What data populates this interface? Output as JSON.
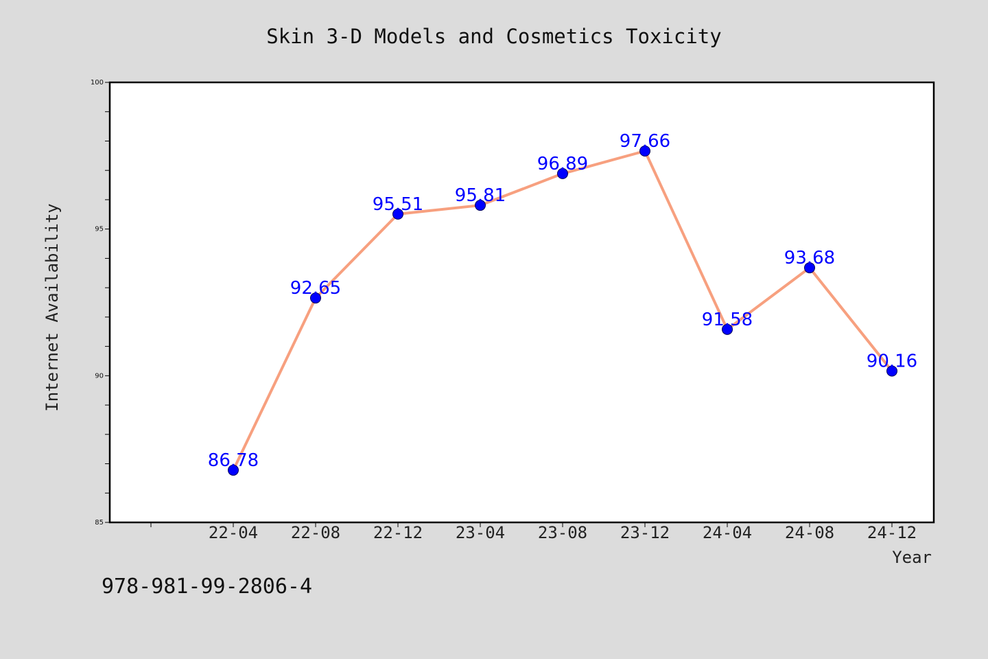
{
  "chart_data": {
    "type": "line",
    "title": "Skin 3-D Models and Cosmetics Toxicity",
    "xlabel": "Year",
    "ylabel": "Internet Availability",
    "categories": [
      "22-04",
      "22-08",
      "22-12",
      "23-04",
      "23-08",
      "23-12",
      "24-04",
      "24-08",
      "24-12"
    ],
    "series": [
      {
        "values": [
          86.78,
          92.65,
          95.51,
          95.81,
          96.89,
          97.66,
          91.58,
          93.68,
          90.16
        ]
      }
    ],
    "data_labels": [
      "86.78",
      "92.65",
      "95.51",
      "95.81",
      "96.89",
      "97.66",
      "91.58",
      "93.68",
      "90.16"
    ],
    "ylim": [
      85,
      100
    ],
    "yticks": [
      "85",
      "90",
      "95",
      "100"
    ],
    "grid": false,
    "line_color": "#f7a07f",
    "marker_color": "#0000ff",
    "label_color": "#0000ff"
  },
  "footer": {
    "isbn": "978-981-99-2806-4"
  }
}
